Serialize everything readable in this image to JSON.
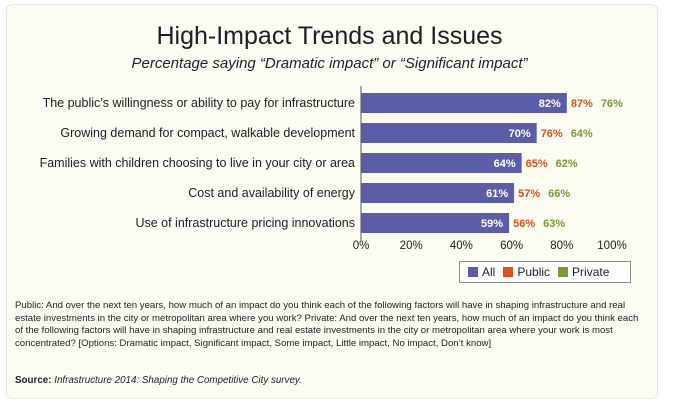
{
  "chart_data": {
    "type": "bar",
    "orientation": "horizontal",
    "title": "High-Impact Trends and Issues",
    "subtitle": "Percentage saying “Dramatic impact” or “Significant impact”",
    "categories": [
      "The public’s willingness or ability to pay for infrastructure",
      "Growing demand for compact, walkable development",
      "Families with children choosing to live in your city or area",
      "Cost and availability of energy",
      "Use of infrastructure pricing innovations"
    ],
    "series": [
      {
        "name": "All",
        "values": [
          82,
          70,
          64,
          61,
          59
        ],
        "color": "#5b5ea6"
      },
      {
        "name": "Public",
        "values": [
          87,
          76,
          65,
          57,
          56
        ],
        "color": "#d9531e"
      },
      {
        "name": "Private",
        "values": [
          76,
          64,
          62,
          66,
          63
        ],
        "color": "#7a9a3a"
      }
    ],
    "value_suffix": "%",
    "xlim": [
      0,
      100
    ],
    "xticks": [
      "0%",
      "20%",
      "40%",
      "60%",
      "80%",
      "100%"
    ],
    "legend_position": "bottom-right",
    "grid": false
  },
  "footnote": "Public: And over the next ten years, how much of an impact do you think each of the following factors will have in shaping infrastructure and real estate investments in the city or metropolitan area where you work? Private: And over the next ten years, how much of an impact do you think each of the following factors will have in shaping infrastructure and real estate investments in the city or metropolitan area where your work is most concentrated? [Options: Dramatic impact, Significant impact, Some impact, Little impact, No impact, Don’t know]",
  "source": {
    "label": "Source:",
    "text": "Infrastructure 2014: Shaping the Competitive City survey."
  }
}
